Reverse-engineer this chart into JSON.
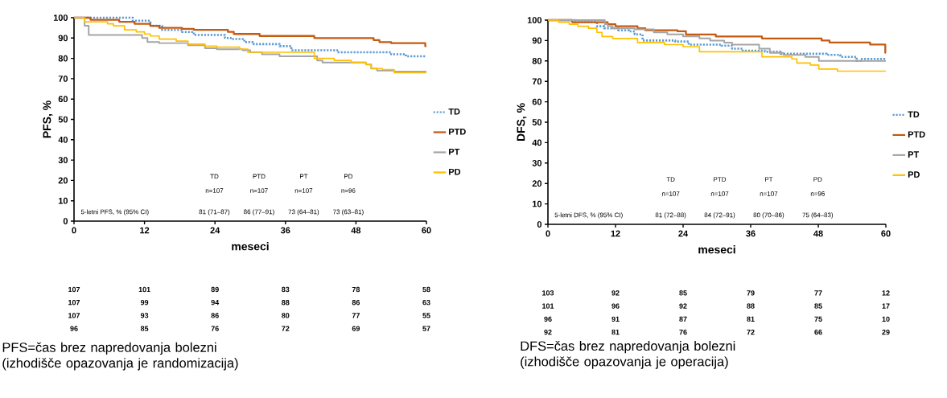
{
  "chart_data": [
    {
      "type": "step",
      "xlabel": "meseci",
      "ylabel": "PFS, %",
      "xlim": [
        0,
        60
      ],
      "xticks": [
        0,
        12,
        24,
        36,
        48,
        60
      ],
      "ylim": [
        0,
        100
      ],
      "yticks": [
        0,
        10,
        20,
        30,
        40,
        50,
        60,
        70,
        80,
        90,
        100
      ],
      "legend": "right",
      "series": [
        {
          "name": "TD",
          "color": "#5b9bd5",
          "line_style": "dotted",
          "x": [
            0,
            10,
            13,
            15,
            18.4,
            20.4,
            25.7,
            26.7,
            29,
            30.6,
            35,
            37,
            44.8,
            54,
            56.5,
            60
          ],
          "values": [
            100,
            98.5,
            96,
            94,
            93,
            91.5,
            90,
            89.5,
            88,
            87,
            86,
            84,
            83,
            82,
            81,
            81
          ]
        },
        {
          "name": "PTD",
          "color": "#c55a11",
          "line_style": "solid",
          "x": [
            0,
            2.8,
            7.7,
            10.3,
            13,
            14.5,
            18.4,
            20.4,
            26.2,
            27.2,
            31.6,
            40.9,
            51,
            52,
            54,
            59.8,
            60
          ],
          "values": [
            100,
            99,
            98,
            97,
            96,
            95,
            94.5,
            94,
            93,
            92,
            91,
            90,
            89,
            88,
            87.5,
            86,
            86
          ]
        },
        {
          "name": "PT",
          "color": "#a5a5a5",
          "line_style": "solid",
          "x": [
            0,
            1.8,
            2.5,
            11.6,
            12.5,
            14.5,
            19.4,
            22.3,
            24.3,
            28.7,
            30,
            32,
            35,
            41.4,
            42.3,
            49.7,
            50.6,
            51.6,
            54.5,
            60
          ],
          "values": [
            100,
            96,
            91.5,
            90,
            88,
            87.5,
            86.5,
            85,
            84.5,
            84,
            83,
            82,
            81,
            79,
            78,
            77,
            75,
            74,
            73.5,
            73.5
          ]
        },
        {
          "name": "PD",
          "color": "#ffc000",
          "line_style": "solid",
          "x": [
            0,
            1.8,
            5.7,
            6.7,
            8.6,
            10.6,
            12,
            13,
            14.5,
            17.4,
            19.4,
            22.3,
            24.3,
            28.2,
            29.6,
            40.9,
            44.3,
            47.2,
            49.7,
            50.6,
            52.5,
            54.5,
            60
          ],
          "values": [
            100,
            98,
            97,
            96,
            94,
            93,
            92,
            91,
            89.5,
            88.5,
            87,
            86,
            85.5,
            84.5,
            83,
            80,
            79,
            78,
            77,
            75,
            74.5,
            73,
            73
          ]
        }
      ],
      "annotations": [
        "TD",
        "PTD",
        "PT",
        "PD",
        "n=107",
        "n=107",
        "n=107",
        "n=96",
        "5-letni PFS, % (95% CI)",
        "81 (71–87)",
        "86 (77–91)",
        "73 (64–81)",
        "73 (63–81)",
        "107",
        "101",
        "89",
        "83",
        "78",
        "58",
        "107",
        "99",
        "94",
        "88",
        "86",
        "63",
        "107",
        "93",
        "86",
        "80",
        "77",
        "55",
        "96",
        "85",
        "76",
        "72",
        "69",
        "57",
        "PFS=čas  brez napredovanja bolezni (izhodišče opazovanja je randomizacija)"
      ]
    },
    {
      "type": "step",
      "xlabel": "meseci",
      "ylabel": "DFS, %",
      "xlim": [
        0,
        60
      ],
      "xticks": [
        0,
        12,
        24,
        36,
        48,
        60
      ],
      "ylim": [
        0,
        100
      ],
      "yticks": [
        0,
        10,
        20,
        30,
        40,
        50,
        60,
        70,
        80,
        90,
        100
      ],
      "legend": "right",
      "series": [
        {
          "name": "TD",
          "color": "#5b9bd5",
          "line_style": "dotted",
          "x": [
            0,
            4.8,
            8.7,
            10,
            12.5,
            14.4,
            15.4,
            16.8,
            22.6,
            25,
            30.8,
            32.7,
            34.6,
            38.5,
            41.3,
            49.5,
            51.9,
            54.8,
            55.5,
            60
          ],
          "values": [
            100,
            99,
            97,
            96,
            95,
            94.5,
            93,
            90,
            89.5,
            88,
            87.5,
            86,
            85,
            84.5,
            83.5,
            83,
            82,
            80,
            81,
            81
          ]
        },
        {
          "name": "PTD",
          "color": "#c55a11",
          "line_style": "solid",
          "x": [
            0,
            4.3,
            10.6,
            12,
            15.9,
            17.3,
            23,
            24.5,
            29.8,
            38,
            48.6,
            50,
            57.2,
            59.9,
            60
          ],
          "values": [
            100,
            99,
            98,
            97,
            96,
            95,
            94.5,
            93,
            92,
            91,
            90,
            89,
            88,
            84,
            84
          ]
        },
        {
          "name": "PT",
          "color": "#a5a5a5",
          "line_style": "solid",
          "x": [
            0,
            10.1,
            10.6,
            11.5,
            15.4,
            18.8,
            21.2,
            24,
            26.9,
            28.8,
            31.3,
            32.7,
            37.5,
            39.4,
            41.8,
            45.7,
            48.1,
            60
          ],
          "values": [
            100,
            98,
            97,
            96,
            95.5,
            94,
            93,
            92,
            91,
            90,
            89,
            88,
            86,
            84,
            83,
            82,
            80,
            80
          ]
        },
        {
          "name": "PD",
          "color": "#ffc000",
          "line_style": "solid",
          "x": [
            0,
            1.9,
            3.8,
            5.3,
            7.2,
            8.7,
            9.6,
            11.5,
            15.9,
            20.7,
            24,
            26.9,
            38,
            43.3,
            44.2,
            46.6,
            48.1,
            51.4,
            60
          ],
          "values": [
            100,
            99,
            98,
            97,
            96,
            94,
            92,
            91,
            89,
            88,
            87,
            84.5,
            82,
            81,
            79,
            78,
            76,
            75,
            75
          ]
        }
      ],
      "annotations": [
        "TD",
        "PTD",
        "PT",
        "PD",
        "n=107",
        "n=107",
        "n=107",
        "n=96",
        "5-letni DFS, % (95% CI)",
        "81 (72–88)",
        "84 (72–91)",
        "80 (70–86)",
        "75 (64–83)",
        "103",
        "92",
        "85",
        "79",
        "77",
        "12",
        "101",
        "96",
        "92",
        "88",
        "85",
        "17",
        "96",
        "91",
        "87",
        "81",
        "75",
        "10",
        "92",
        "81",
        "76",
        "72",
        "66",
        "29",
        "DFS=čas brez napredovanja bolezni (izhodišče opazovanja je operacija)"
      ]
    }
  ]
}
